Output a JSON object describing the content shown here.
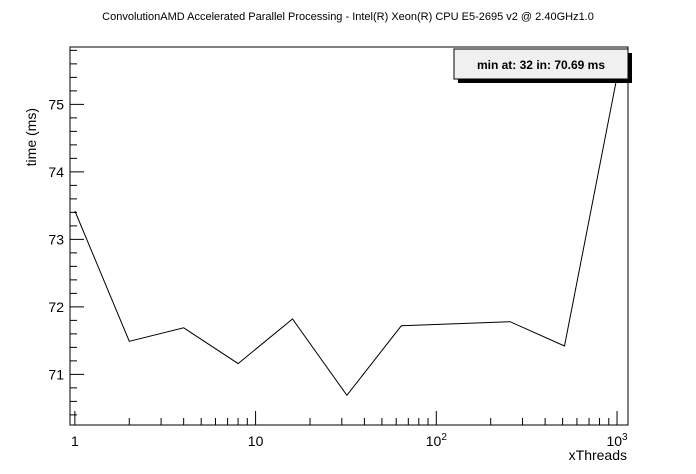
{
  "chart_data": {
    "type": "line",
    "title": "ConvolutionAMD Accelerated Parallel Processing - Intel(R) Xeon(R) CPU E5-2695 v2 @ 2.40GHz1.0",
    "xlabel": "xThreads",
    "ylabel": "time (ms)",
    "xscale": "log",
    "xlim": [
      0.94,
      1150
    ],
    "ylim": [
      70.25,
      75.85
    ],
    "x_ticks": [
      {
        "value": 1,
        "base": "1",
        "exp": ""
      },
      {
        "value": 10,
        "base": "10",
        "exp": ""
      },
      {
        "value": 100,
        "base": "10",
        "exp": "2"
      },
      {
        "value": 1000,
        "base": "10",
        "exp": "3"
      }
    ],
    "y_ticks": [
      71,
      72,
      73,
      74,
      75
    ],
    "y_tick_labels": [
      "71",
      "72",
      "73",
      "74",
      "75"
    ],
    "grid": false,
    "legend": "none",
    "annotation": {
      "text": "min at: 32 in: 70.69 ms",
      "position": "top-right"
    },
    "line_color": "#000000",
    "series": [
      {
        "x": [
          1,
          2,
          4,
          8,
          16,
          32,
          64,
          128,
          256,
          512,
          1024
        ],
        "values": [
          73.42,
          71.49,
          71.69,
          71.16,
          71.82,
          70.69,
          71.72,
          71.75,
          71.78,
          71.42,
          75.55
        ]
      }
    ]
  }
}
